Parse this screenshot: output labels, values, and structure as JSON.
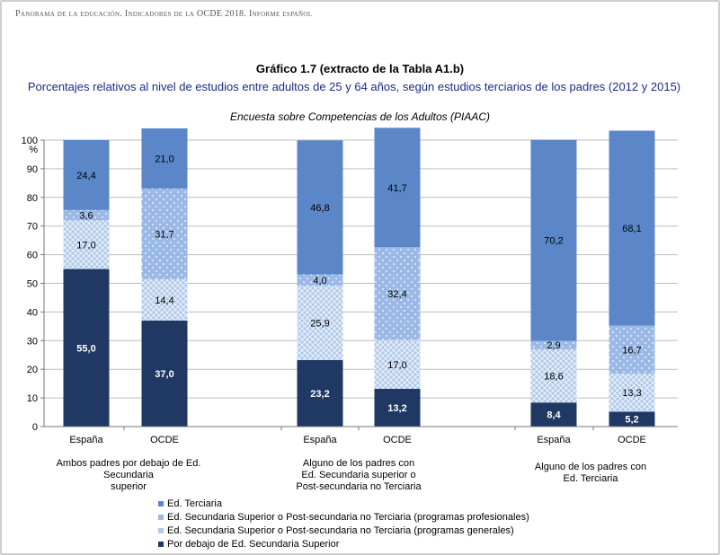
{
  "header": "Panorama de la educación. Indicadores de la OCDE 2018. Informe español",
  "chart_data": {
    "type": "bar",
    "stacked": true,
    "title": "Gráfico 1.7 (extracto de la Tabla A1.b)",
    "subtitle": "Porcentajes relativos al nivel de estudios entre adultos de 25 y 64 años, según estudios terciarios de los padres (2012 y 2015)",
    "survey": "Encuesta sobre Competencias de los Adultos (PIAAC)",
    "ylabel": "%",
    "ylim": [
      0,
      100
    ],
    "yticks": [
      0,
      10,
      20,
      30,
      40,
      50,
      60,
      70,
      80,
      90,
      100
    ],
    "grid": true,
    "categories": [
      "España",
      "OCDE",
      "España",
      "OCDE",
      "España",
      "OCDE"
    ],
    "groups": [
      {
        "label": "Ambos padres por debajo de Ed. Secundaria superior",
        "lines": [
          "Ambos padres por debajo de Ed. Secundaria",
          "superior"
        ]
      },
      {
        "label": "Alguno de los padres con Ed. Secundaria superior o Post-secundaria no Terciaria",
        "lines": [
          "Alguno de los padres con",
          "Ed. Secundaria superior o",
          "Post-secundaria no Terciaria"
        ]
      },
      {
        "label": "Alguno de los padres con Ed. Terciaria",
        "lines": [
          "Alguno de los padres con",
          "Ed. Terciaria"
        ]
      }
    ],
    "series": [
      {
        "name": "Por debajo de Ed. Secundaria Superior",
        "color": "#1f3864",
        "values": [
          55.0,
          37.0,
          23.2,
          13.2,
          8.4,
          5.2
        ],
        "labels": [
          "55,0",
          "37,0",
          "23,2",
          "13,2",
          "8,4",
          "5,2"
        ]
      },
      {
        "name": "Ed. Secundaria Superior o Post-secundaria no Terciaria (programas generales)",
        "color": "#a9c4e8",
        "values": [
          17.0,
          14.4,
          25.9,
          17.0,
          18.6,
          13.3
        ],
        "labels": [
          "17,0",
          "14,4",
          "25,9",
          "17,0",
          "18,6",
          "13,3"
        ]
      },
      {
        "name": "Ed. Secundaria Superior o Post-secundaria no Terciaria (programas profesionales)",
        "color": "#9bb9e6",
        "values": [
          3.6,
          31.7,
          4.0,
          32.4,
          2.9,
          16.7
        ],
        "labels": [
          "3,6",
          "31,7",
          "4,0",
          "32,4",
          "2,9",
          "16,7"
        ]
      },
      {
        "name": "Ed. Terciaria",
        "color": "#5b87c9",
        "values": [
          24.4,
          21.0,
          46.8,
          41.7,
          70.2,
          68.1
        ],
        "labels": [
          "24,4",
          "21,0",
          "46,8",
          "41,7",
          "70,2",
          "68,1"
        ]
      }
    ],
    "legend": [
      "Ed. Terciaria",
      "Ed. Secundaria Superior o Post-secundaria no Terciaria (programas profesionales)",
      "Ed. Secundaria Superior o Post-secundaria no Terciaria (programas generales)",
      "Por debajo de Ed. Secundaria Superior"
    ],
    "legend_position": "bottom"
  }
}
